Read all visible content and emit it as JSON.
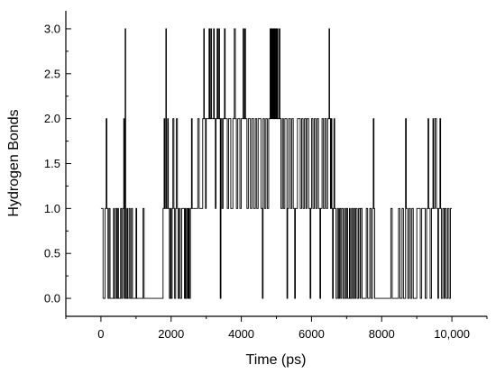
{
  "chart_data": {
    "type": "line",
    "title": "",
    "xlabel": "Time (ps)",
    "ylabel": "Hydrogen Bonds",
    "xlim": [
      -1000,
      11000
    ],
    "ylim": [
      -0.2,
      3.2
    ],
    "x_ticks": [
      0,
      2000,
      4000,
      6000,
      8000,
      10000
    ],
    "x_tick_labels": [
      "0",
      "2000",
      "4000",
      "6000",
      "8000",
      "10,000"
    ],
    "y_ticks": [
      0.0,
      0.5,
      1.0,
      1.5,
      2.0,
      2.5,
      3.0
    ],
    "y_tick_labels": [
      "0.0",
      "0.5",
      "1.0",
      "1.5",
      "2.0",
      "2.5",
      "3.0"
    ],
    "grid": false,
    "step": true,
    "line_color": "#000000",
    "series": [
      {
        "values": [
          [
            0,
            1
          ],
          [
            60,
            0
          ],
          [
            120,
            1
          ],
          [
            150,
            2
          ],
          [
            170,
            1
          ],
          [
            200,
            0
          ],
          [
            230,
            1
          ],
          [
            260,
            0
          ],
          [
            320,
            0
          ],
          [
            360,
            1
          ],
          [
            380,
            0
          ],
          [
            420,
            1
          ],
          [
            450,
            0
          ],
          [
            480,
            1
          ],
          [
            500,
            0
          ],
          [
            560,
            1
          ],
          [
            590,
            0
          ],
          [
            620,
            1
          ],
          [
            650,
            2
          ],
          [
            665,
            0
          ],
          [
            690,
            3
          ],
          [
            705,
            0
          ],
          [
            740,
            1
          ],
          [
            760,
            0
          ],
          [
            800,
            1
          ],
          [
            830,
            0
          ],
          [
            870,
            1
          ],
          [
            900,
            0
          ],
          [
            950,
            0
          ],
          [
            1000,
            1
          ],
          [
            1020,
            0
          ],
          [
            1200,
            1
          ],
          [
            1230,
            0
          ],
          [
            1300,
            0
          ],
          [
            1500,
            0
          ],
          [
            1700,
            0
          ],
          [
            1770,
            1
          ],
          [
            1800,
            2
          ],
          [
            1820,
            1
          ],
          [
            1850,
            3
          ],
          [
            1865,
            1
          ],
          [
            1900,
            2
          ],
          [
            1920,
            1
          ],
          [
            1950,
            0
          ],
          [
            1980,
            1
          ],
          [
            2000,
            0
          ],
          [
            2030,
            1
          ],
          [
            2050,
            2
          ],
          [
            2080,
            1
          ],
          [
            2100,
            0
          ],
          [
            2130,
            1
          ],
          [
            2150,
            2
          ],
          [
            2180,
            1
          ],
          [
            2200,
            0
          ],
          [
            2230,
            1
          ],
          [
            2260,
            0
          ],
          [
            2300,
            1
          ],
          [
            2350,
            1
          ],
          [
            2380,
            0
          ],
          [
            2400,
            1
          ],
          [
            2420,
            0
          ],
          [
            2450,
            1
          ],
          [
            2480,
            0
          ],
          [
            2500,
            1
          ],
          [
            2520,
            0
          ],
          [
            2550,
            1
          ],
          [
            2580,
            2
          ],
          [
            2600,
            1
          ],
          [
            2640,
            1
          ],
          [
            2700,
            1
          ],
          [
            2760,
            2
          ],
          [
            2800,
            1
          ],
          [
            2860,
            1
          ],
          [
            2900,
            2
          ],
          [
            2930,
            3
          ],
          [
            2945,
            2
          ],
          [
            2980,
            1
          ],
          [
            3000,
            2
          ],
          [
            3050,
            2
          ],
          [
            3080,
            3
          ],
          [
            3100,
            2
          ],
          [
            3130,
            3
          ],
          [
            3150,
            2
          ],
          [
            3190,
            2
          ],
          [
            3210,
            3
          ],
          [
            3230,
            2
          ],
          [
            3260,
            1
          ],
          [
            3280,
            2
          ],
          [
            3310,
            3
          ],
          [
            3330,
            2
          ],
          [
            3360,
            3
          ],
          [
            3380,
            2
          ],
          [
            3400,
            0
          ],
          [
            3420,
            2
          ],
          [
            3450,
            1
          ],
          [
            3480,
            2
          ],
          [
            3520,
            3
          ],
          [
            3540,
            2
          ],
          [
            3600,
            1
          ],
          [
            3640,
            2
          ],
          [
            3700,
            1
          ],
          [
            3760,
            2
          ],
          [
            3800,
            3
          ],
          [
            3830,
            2
          ],
          [
            3860,
            1
          ],
          [
            3900,
            2
          ],
          [
            3960,
            1
          ],
          [
            4000,
            2
          ],
          [
            4050,
            3
          ],
          [
            4070,
            2
          ],
          [
            4100,
            3
          ],
          [
            4120,
            2
          ],
          [
            4160,
            1
          ],
          [
            4200,
            2
          ],
          [
            4260,
            1
          ],
          [
            4300,
            2
          ],
          [
            4350,
            1
          ],
          [
            4400,
            2
          ],
          [
            4440,
            1
          ],
          [
            4480,
            2
          ],
          [
            4520,
            2
          ],
          [
            4560,
            1
          ],
          [
            4600,
            0
          ],
          [
            4620,
            2
          ],
          [
            4660,
            1
          ],
          [
            4700,
            2
          ],
          [
            4740,
            1
          ],
          [
            4780,
            2
          ],
          [
            4820,
            3
          ],
          [
            4840,
            2
          ],
          [
            4860,
            3
          ],
          [
            4880,
            2
          ],
          [
            4900,
            3
          ],
          [
            4920,
            2
          ],
          [
            4940,
            3
          ],
          [
            4960,
            2
          ],
          [
            4980,
            3
          ],
          [
            5000,
            2
          ],
          [
            5020,
            3
          ],
          [
            5040,
            2
          ],
          [
            5080,
            3
          ],
          [
            5100,
            2
          ],
          [
            5130,
            1
          ],
          [
            5170,
            2
          ],
          [
            5200,
            1
          ],
          [
            5240,
            2
          ],
          [
            5300,
            0
          ],
          [
            5320,
            1
          ],
          [
            5350,
            2
          ],
          [
            5400,
            1
          ],
          [
            5440,
            2
          ],
          [
            5480,
            1
          ],
          [
            5520,
            0
          ],
          [
            5540,
            1
          ],
          [
            5600,
            2
          ],
          [
            5680,
            1
          ],
          [
            5720,
            2
          ],
          [
            5760,
            1
          ],
          [
            5800,
            2
          ],
          [
            5840,
            1
          ],
          [
            5870,
            2
          ],
          [
            5920,
            1
          ],
          [
            5960,
            0
          ],
          [
            5980,
            1
          ],
          [
            6000,
            2
          ],
          [
            6040,
            1
          ],
          [
            6080,
            2
          ],
          [
            6120,
            1
          ],
          [
            6160,
            2
          ],
          [
            6200,
            1
          ],
          [
            6240,
            0
          ],
          [
            6260,
            1
          ],
          [
            6300,
            2
          ],
          [
            6340,
            1
          ],
          [
            6380,
            2
          ],
          [
            6420,
            1
          ],
          [
            6460,
            2
          ],
          [
            6500,
            3
          ],
          [
            6515,
            2
          ],
          [
            6540,
            1
          ],
          [
            6560,
            2
          ],
          [
            6580,
            1
          ],
          [
            6600,
            0
          ],
          [
            6620,
            1
          ],
          [
            6640,
            2
          ],
          [
            6660,
            1
          ],
          [
            6700,
            0
          ],
          [
            6740,
            1
          ],
          [
            6770,
            0
          ],
          [
            6800,
            1
          ],
          [
            6830,
            0
          ],
          [
            6860,
            1
          ],
          [
            6900,
            0
          ],
          [
            6940,
            1
          ],
          [
            6970,
            0
          ],
          [
            7000,
            1
          ],
          [
            7030,
            0
          ],
          [
            7080,
            1
          ],
          [
            7100,
            0
          ],
          [
            7140,
            1
          ],
          [
            7170,
            0
          ],
          [
            7200,
            1
          ],
          [
            7230,
            0
          ],
          [
            7260,
            1
          ],
          [
            7300,
            0
          ],
          [
            7340,
            1
          ],
          [
            7380,
            0
          ],
          [
            7400,
            1
          ],
          [
            7440,
            0
          ],
          [
            7500,
            0
          ],
          [
            7560,
            1
          ],
          [
            7600,
            0
          ],
          [
            7660,
            1
          ],
          [
            7700,
            0
          ],
          [
            7740,
            1
          ],
          [
            7760,
            2
          ],
          [
            7780,
            1
          ],
          [
            7800,
            0
          ],
          [
            7900,
            0
          ],
          [
            8000,
            0
          ],
          [
            8100,
            0
          ],
          [
            8200,
            0
          ],
          [
            8260,
            1
          ],
          [
            8300,
            0
          ],
          [
            8400,
            0
          ],
          [
            8480,
            1
          ],
          [
            8520,
            0
          ],
          [
            8580,
            1
          ],
          [
            8620,
            0
          ],
          [
            8680,
            2
          ],
          [
            8700,
            1
          ],
          [
            8740,
            0
          ],
          [
            8780,
            1
          ],
          [
            8820,
            0
          ],
          [
            8860,
            1
          ],
          [
            8900,
            0
          ],
          [
            8950,
            0
          ],
          [
            9000,
            1
          ],
          [
            9050,
            1
          ],
          [
            9100,
            0
          ],
          [
            9140,
            1
          ],
          [
            9200,
            1
          ],
          [
            9240,
            0
          ],
          [
            9280,
            1
          ],
          [
            9320,
            2
          ],
          [
            9340,
            1
          ],
          [
            9380,
            0
          ],
          [
            9420,
            1
          ],
          [
            9460,
            2
          ],
          [
            9480,
            1
          ],
          [
            9520,
            2
          ],
          [
            9560,
            1
          ],
          [
            9600,
            0
          ],
          [
            9620,
            1
          ],
          [
            9660,
            2
          ],
          [
            9680,
            1
          ],
          [
            9700,
            0
          ],
          [
            9740,
            1
          ],
          [
            9780,
            0
          ],
          [
            9800,
            1
          ],
          [
            9840,
            0
          ],
          [
            9880,
            1
          ],
          [
            9920,
            0
          ],
          [
            9960,
            1
          ],
          [
            10000,
            1
          ]
        ]
      }
    ]
  }
}
